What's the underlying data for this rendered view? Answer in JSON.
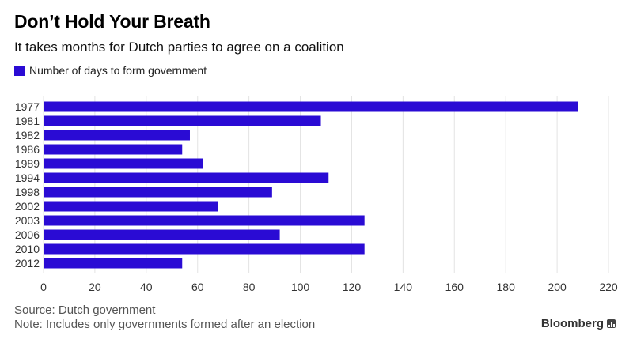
{
  "header": {
    "title": "Don’t Hold Your Breath",
    "subtitle": "It takes months for Dutch parties to agree on a coalition"
  },
  "legend": {
    "label": "Number of days to form government",
    "color": "#2a0bd4"
  },
  "footer": {
    "source": "Source: Dutch government",
    "note": "Note: Includes only governments formed after an election",
    "brand": "Bloomberg"
  },
  "chart_data": {
    "type": "bar",
    "orientation": "horizontal",
    "title": "Don’t Hold Your Breath",
    "subtitle": "It takes months for Dutch parties to agree on a coalition",
    "xlabel": "",
    "ylabel": "",
    "categories": [
      "1977",
      "1981",
      "1982",
      "1986",
      "1989",
      "1994",
      "1998",
      "2002",
      "2003",
      "2006",
      "2010",
      "2012"
    ],
    "series": [
      {
        "name": "Number of days to form government",
        "values": [
          208,
          108,
          57,
          54,
          62,
          111,
          89,
          68,
          125,
          92,
          125,
          54
        ],
        "color": "#2a0bd4"
      }
    ],
    "xlim": [
      0,
      220
    ],
    "xticks": [
      0,
      20,
      40,
      60,
      80,
      100,
      120,
      140,
      160,
      180,
      200,
      220
    ],
    "grid": true,
    "legend_position": "top-left"
  }
}
